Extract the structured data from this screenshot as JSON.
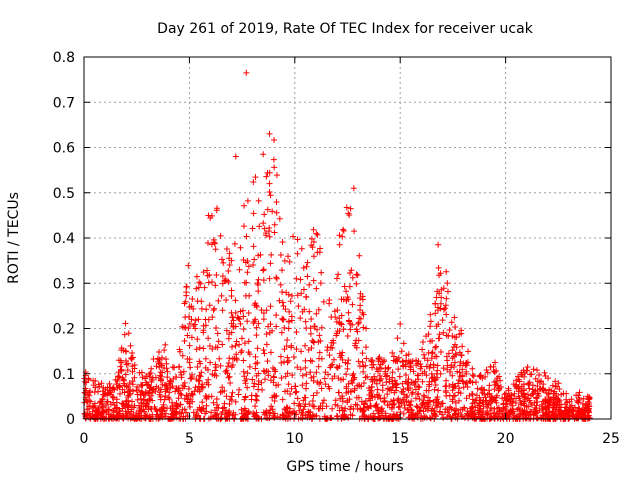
{
  "chart_data": {
    "type": "scatter",
    "title": "Day 261 of 2019, Rate Of TEC Index for receiver ucak",
    "xlabel": "GPS time / hours",
    "ylabel": "ROTI / TECUs",
    "xlim": [
      0,
      25
    ],
    "ylim": [
      0,
      0.8
    ],
    "x_ticks": [
      "0",
      "5",
      "10",
      "15",
      "20",
      "25"
    ],
    "y_ticks": [
      "0",
      "0.1",
      "0.2",
      "0.3",
      "0.4",
      "0.5",
      "0.6",
      "0.7",
      "0.8"
    ],
    "grid": true,
    "marker": "+",
    "color": "#ff0000",
    "envelope": {
      "hours": [
        0,
        0.5,
        1,
        1.5,
        2,
        2.5,
        3,
        3.5,
        4,
        4.5,
        5,
        5.5,
        6,
        6.5,
        7,
        7.5,
        8,
        8.5,
        9,
        9.5,
        10,
        10.5,
        11,
        11.5,
        12,
        12.5,
        13,
        13.5,
        14,
        14.5,
        15,
        15.5,
        16,
        16.5,
        17,
        17.5,
        18,
        18.5,
        19,
        19.5,
        20,
        20.5,
        21,
        21.5,
        22,
        22.5,
        23,
        23.5,
        24
      ],
      "typical_max_roti": [
        0.13,
        0.09,
        0.08,
        0.09,
        0.22,
        0.1,
        0.11,
        0.15,
        0.17,
        0.14,
        0.37,
        0.3,
        0.5,
        0.45,
        0.35,
        0.48,
        0.55,
        0.5,
        0.63,
        0.35,
        0.42,
        0.38,
        0.46,
        0.3,
        0.38,
        0.5,
        0.39,
        0.15,
        0.14,
        0.13,
        0.21,
        0.13,
        0.18,
        0.25,
        0.39,
        0.23,
        0.19,
        0.1,
        0.11,
        0.12,
        0.06,
        0.09,
        0.12,
        0.11,
        0.1,
        0.08,
        0.05,
        0.06,
        0.05
      ],
      "typical_min_roti": [
        0.0,
        0.0,
        0.0,
        0.0,
        0.0,
        0.0,
        0.0,
        0.0,
        0.0,
        0.0,
        0.0,
        0.0,
        0.0,
        0.0,
        0.0,
        0.0,
        0.0,
        0.0,
        0.0,
        0.0,
        0.0,
        0.0,
        0.0,
        0.0,
        0.0,
        0.0,
        0.0,
        0.0,
        0.0,
        0.0,
        0.0,
        0.0,
        0.0,
        0.0,
        0.0,
        0.0,
        0.0,
        0.0,
        0.0,
        0.0,
        0.0,
        0.0,
        0.0,
        0.0,
        0.0,
        0.0,
        0.0,
        0.0,
        0.0
      ]
    },
    "notable_points": [
      {
        "x": 7.7,
        "y": 0.765
      },
      {
        "x": 8.8,
        "y": 0.63
      },
      {
        "x": 8.5,
        "y": 0.585
      },
      {
        "x": 7.2,
        "y": 0.58
      },
      {
        "x": 12.8,
        "y": 0.51
      },
      {
        "x": 16.8,
        "y": 0.385
      },
      {
        "x": 15.0,
        "y": 0.21
      },
      {
        "x": 19.5,
        "y": 0.125
      }
    ]
  }
}
